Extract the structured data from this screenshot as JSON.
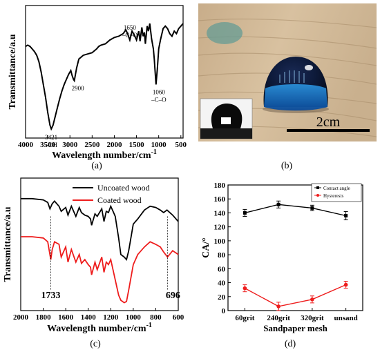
{
  "panels": {
    "a": "(a)",
    "b": "(b)",
    "c": "(c)",
    "d": "(d)"
  },
  "chart_data": [
    {
      "panel": "a",
      "type": "line",
      "xlabel": "Wavelength number/cm",
      "xlabel_sup": "-1",
      "ylabel": "Transmittance/a.u",
      "xlim": [
        4000,
        450
      ],
      "xticks": [
        4000,
        3500,
        3000,
        2500,
        2000,
        1500,
        1000,
        500
      ],
      "x": [
        4000,
        3950,
        3900,
        3850,
        3800,
        3750,
        3700,
        3650,
        3600,
        3550,
        3500,
        3450,
        3421,
        3380,
        3330,
        3280,
        3230,
        3180,
        3130,
        3080,
        3030,
        2980,
        2950,
        2920,
        2900,
        2880,
        2850,
        2800,
        2700,
        2600,
        2500,
        2400,
        2350,
        2300,
        2200,
        2100,
        2000,
        1900,
        1800,
        1740,
        1700,
        1650,
        1600,
        1550,
        1500,
        1450,
        1420,
        1380,
        1350,
        1320,
        1300,
        1260,
        1230,
        1200,
        1160,
        1120,
        1100,
        1060,
        1030,
        1000,
        960,
        900,
        850,
        800,
        750,
        700,
        650,
        600,
        550,
        500,
        450
      ],
      "y": [
        70,
        71,
        70,
        68,
        66,
        63,
        58,
        50,
        40,
        30,
        18,
        8,
        5,
        8,
        15,
        22,
        29,
        35,
        40,
        44,
        48,
        51,
        47,
        44,
        43,
        47,
        53,
        60,
        63,
        64,
        65,
        68,
        70,
        71,
        72,
        75,
        77,
        78,
        80,
        83,
        80,
        75,
        82,
        79,
        75,
        82,
        74,
        85,
        78,
        81,
        72,
        86,
        82,
        88,
        76,
        68,
        60,
        40,
        52,
        68,
        75,
        84,
        86,
        84,
        80,
        78,
        82,
        80,
        84,
        86,
        88
      ],
      "annotations": [
        {
          "text": "3421",
          "sub": "–OH",
          "x": 3421
        },
        {
          "text": "2900",
          "x": 2900
        },
        {
          "text": "1650",
          "sub": "–C=O",
          "x": 1650
        },
        {
          "text": "1060",
          "sub": "–C–O",
          "x": 1060
        }
      ]
    },
    {
      "panel": "c",
      "type": "line",
      "xlabel": "Wavelength number/cm",
      "xlabel_sup": "-1",
      "ylabel": "Transmittance/a.u",
      "xlim": [
        2000,
        600
      ],
      "xticks": [
        2000,
        1800,
        1600,
        1400,
        1200,
        1000,
        800,
        600
      ],
      "series": [
        {
          "name": "Uncoated wood",
          "color": "#000000",
          "x": [
            2000,
            1900,
            1800,
            1760,
            1740,
            1720,
            1700,
            1660,
            1640,
            1600,
            1580,
            1550,
            1510,
            1480,
            1460,
            1430,
            1400,
            1380,
            1370,
            1340,
            1320,
            1280,
            1260,
            1240,
            1220,
            1200,
            1170,
            1160,
            1130,
            1110,
            1080,
            1060,
            1040,
            1000,
            960,
            900,
            850,
            800,
            760,
            730,
            700,
            650,
            600
          ],
          "y": [
            86,
            86,
            85,
            83,
            78,
            82,
            84,
            80,
            76,
            79,
            73,
            80,
            72,
            79,
            75,
            73,
            72,
            70,
            65,
            74,
            72,
            78,
            68,
            76,
            75,
            80,
            74,
            72,
            55,
            42,
            40,
            38,
            45,
            66,
            70,
            77,
            80,
            79,
            77,
            75,
            77,
            73,
            68
          ]
        },
        {
          "name": "Coated wood",
          "color": "#ee1c1c",
          "x": [
            2000,
            1900,
            1800,
            1760,
            1733,
            1720,
            1700,
            1660,
            1640,
            1600,
            1580,
            1550,
            1510,
            1480,
            1460,
            1430,
            1400,
            1380,
            1370,
            1340,
            1320,
            1280,
            1260,
            1240,
            1220,
            1200,
            1170,
            1160,
            1130,
            1110,
            1080,
            1060,
            1040,
            1000,
            960,
            900,
            850,
            800,
            760,
            730,
            696,
            650,
            600
          ],
          "y": [
            56,
            56,
            55,
            52,
            38,
            46,
            52,
            50,
            40,
            48,
            36,
            46,
            36,
            42,
            35,
            38,
            34,
            32,
            26,
            36,
            30,
            40,
            28,
            36,
            34,
            38,
            26,
            22,
            10,
            6,
            4,
            5,
            14,
            34,
            42,
            48,
            52,
            50,
            48,
            44,
            40,
            45,
            42
          ]
        }
      ],
      "annotations": [
        {
          "text": "1733",
          "x": 1733
        },
        {
          "text": "696",
          "x": 696
        }
      ]
    },
    {
      "panel": "d",
      "type": "line",
      "xlabel": "Sandpaper mesh",
      "ylabel": "CA/°",
      "categories": [
        "60grit",
        "240grit",
        "320grit",
        "unsand"
      ],
      "ylim": [
        0,
        180
      ],
      "yticks": [
        0,
        20,
        40,
        60,
        80,
        100,
        120,
        140,
        160,
        180
      ],
      "legend": "top-right",
      "series": [
        {
          "name": "Contact angle",
          "color": "#000000",
          "values": [
            140,
            152,
            147,
            136
          ],
          "errors": [
            5,
            5,
            4,
            6
          ]
        },
        {
          "name": "Hysteresis",
          "color": "#ee1c1c",
          "values": [
            32,
            6,
            16,
            37
          ],
          "errors": [
            5,
            6,
            5,
            5
          ]
        }
      ]
    }
  ],
  "photo": {
    "scale_label": "2cm"
  }
}
